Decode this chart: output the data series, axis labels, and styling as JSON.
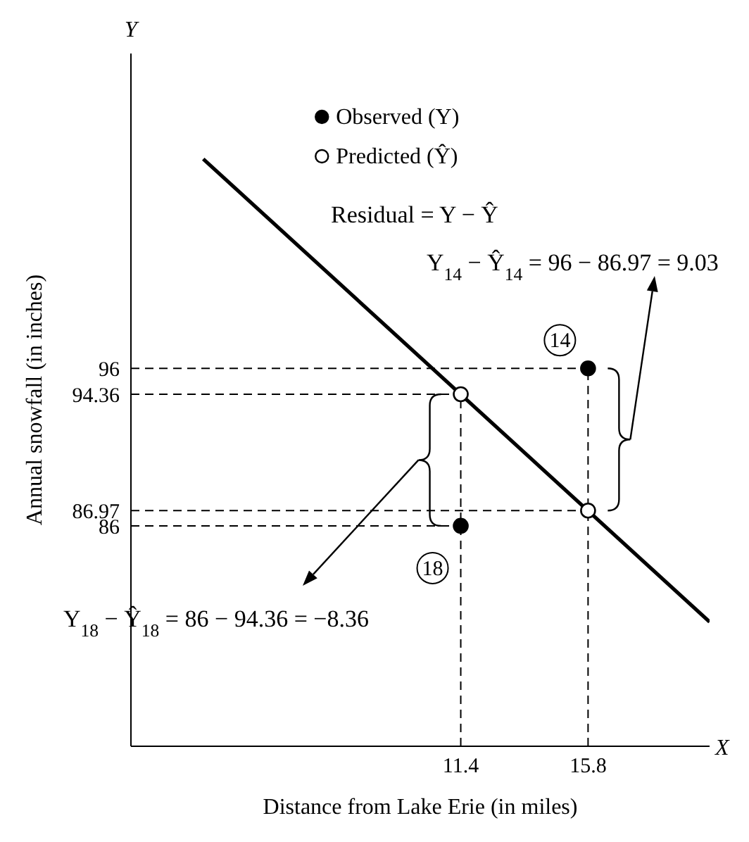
{
  "chart_data": {
    "type": "scatter",
    "xlabel": "Distance from Lake Erie (in miles)",
    "ylabel": "Annual snowfall (in inches)",
    "xlim": [
      0,
      20
    ],
    "ylim": [
      72,
      116
    ],
    "xticks": [
      11.4,
      15.8
    ],
    "yticks": [
      86,
      86.97,
      94.36,
      96
    ],
    "series": [
      {
        "name": "Observed (Y)",
        "color": "#000000",
        "marker": "circle",
        "x": [
          11.4,
          15.8
        ],
        "values": [
          86,
          96
        ]
      },
      {
        "name": "Predicted (Ŷ)",
        "color": "#ffffff",
        "marker": "circle",
        "x": [
          11.4,
          15.8
        ],
        "values": [
          94.36,
          86.97
        ]
      },
      {
        "type": "line",
        "color": "#000000",
        "line_style": "solid",
        "x": [
          2.5,
          20
        ],
        "values": [
          109.3,
          79.9
        ]
      }
    ],
    "ref_lines": [
      {
        "axis": "y",
        "value": 96,
        "line_style": "dashed"
      },
      {
        "axis": "y",
        "value": 94.36,
        "line_style": "dashed"
      },
      {
        "axis": "y",
        "value": 86.97,
        "line_style": "dashed"
      },
      {
        "axis": "y",
        "value": 86,
        "line_style": "dashed"
      },
      {
        "axis": "x",
        "value": 11.4,
        "line_style": "dashed"
      },
      {
        "axis": "x",
        "value": 15.8,
        "line_style": "dashed"
      }
    ],
    "annotations": [
      "Residual = Y − Ŷ",
      "Y$_{14}$ − Ŷ$_{14}$ = 96 − 86.97 = 9.03",
      "Y$_{18}$ − Ŷ$_{18}$ = 86 − 94.36 = −8.36",
      "X",
      "Y",
      {
        "text": "14",
        "x": 15.8,
        "y": 96
      },
      {
        "text": "18",
        "x": 11.4,
        "y": 86
      }
    ],
    "legend": "top"
  }
}
